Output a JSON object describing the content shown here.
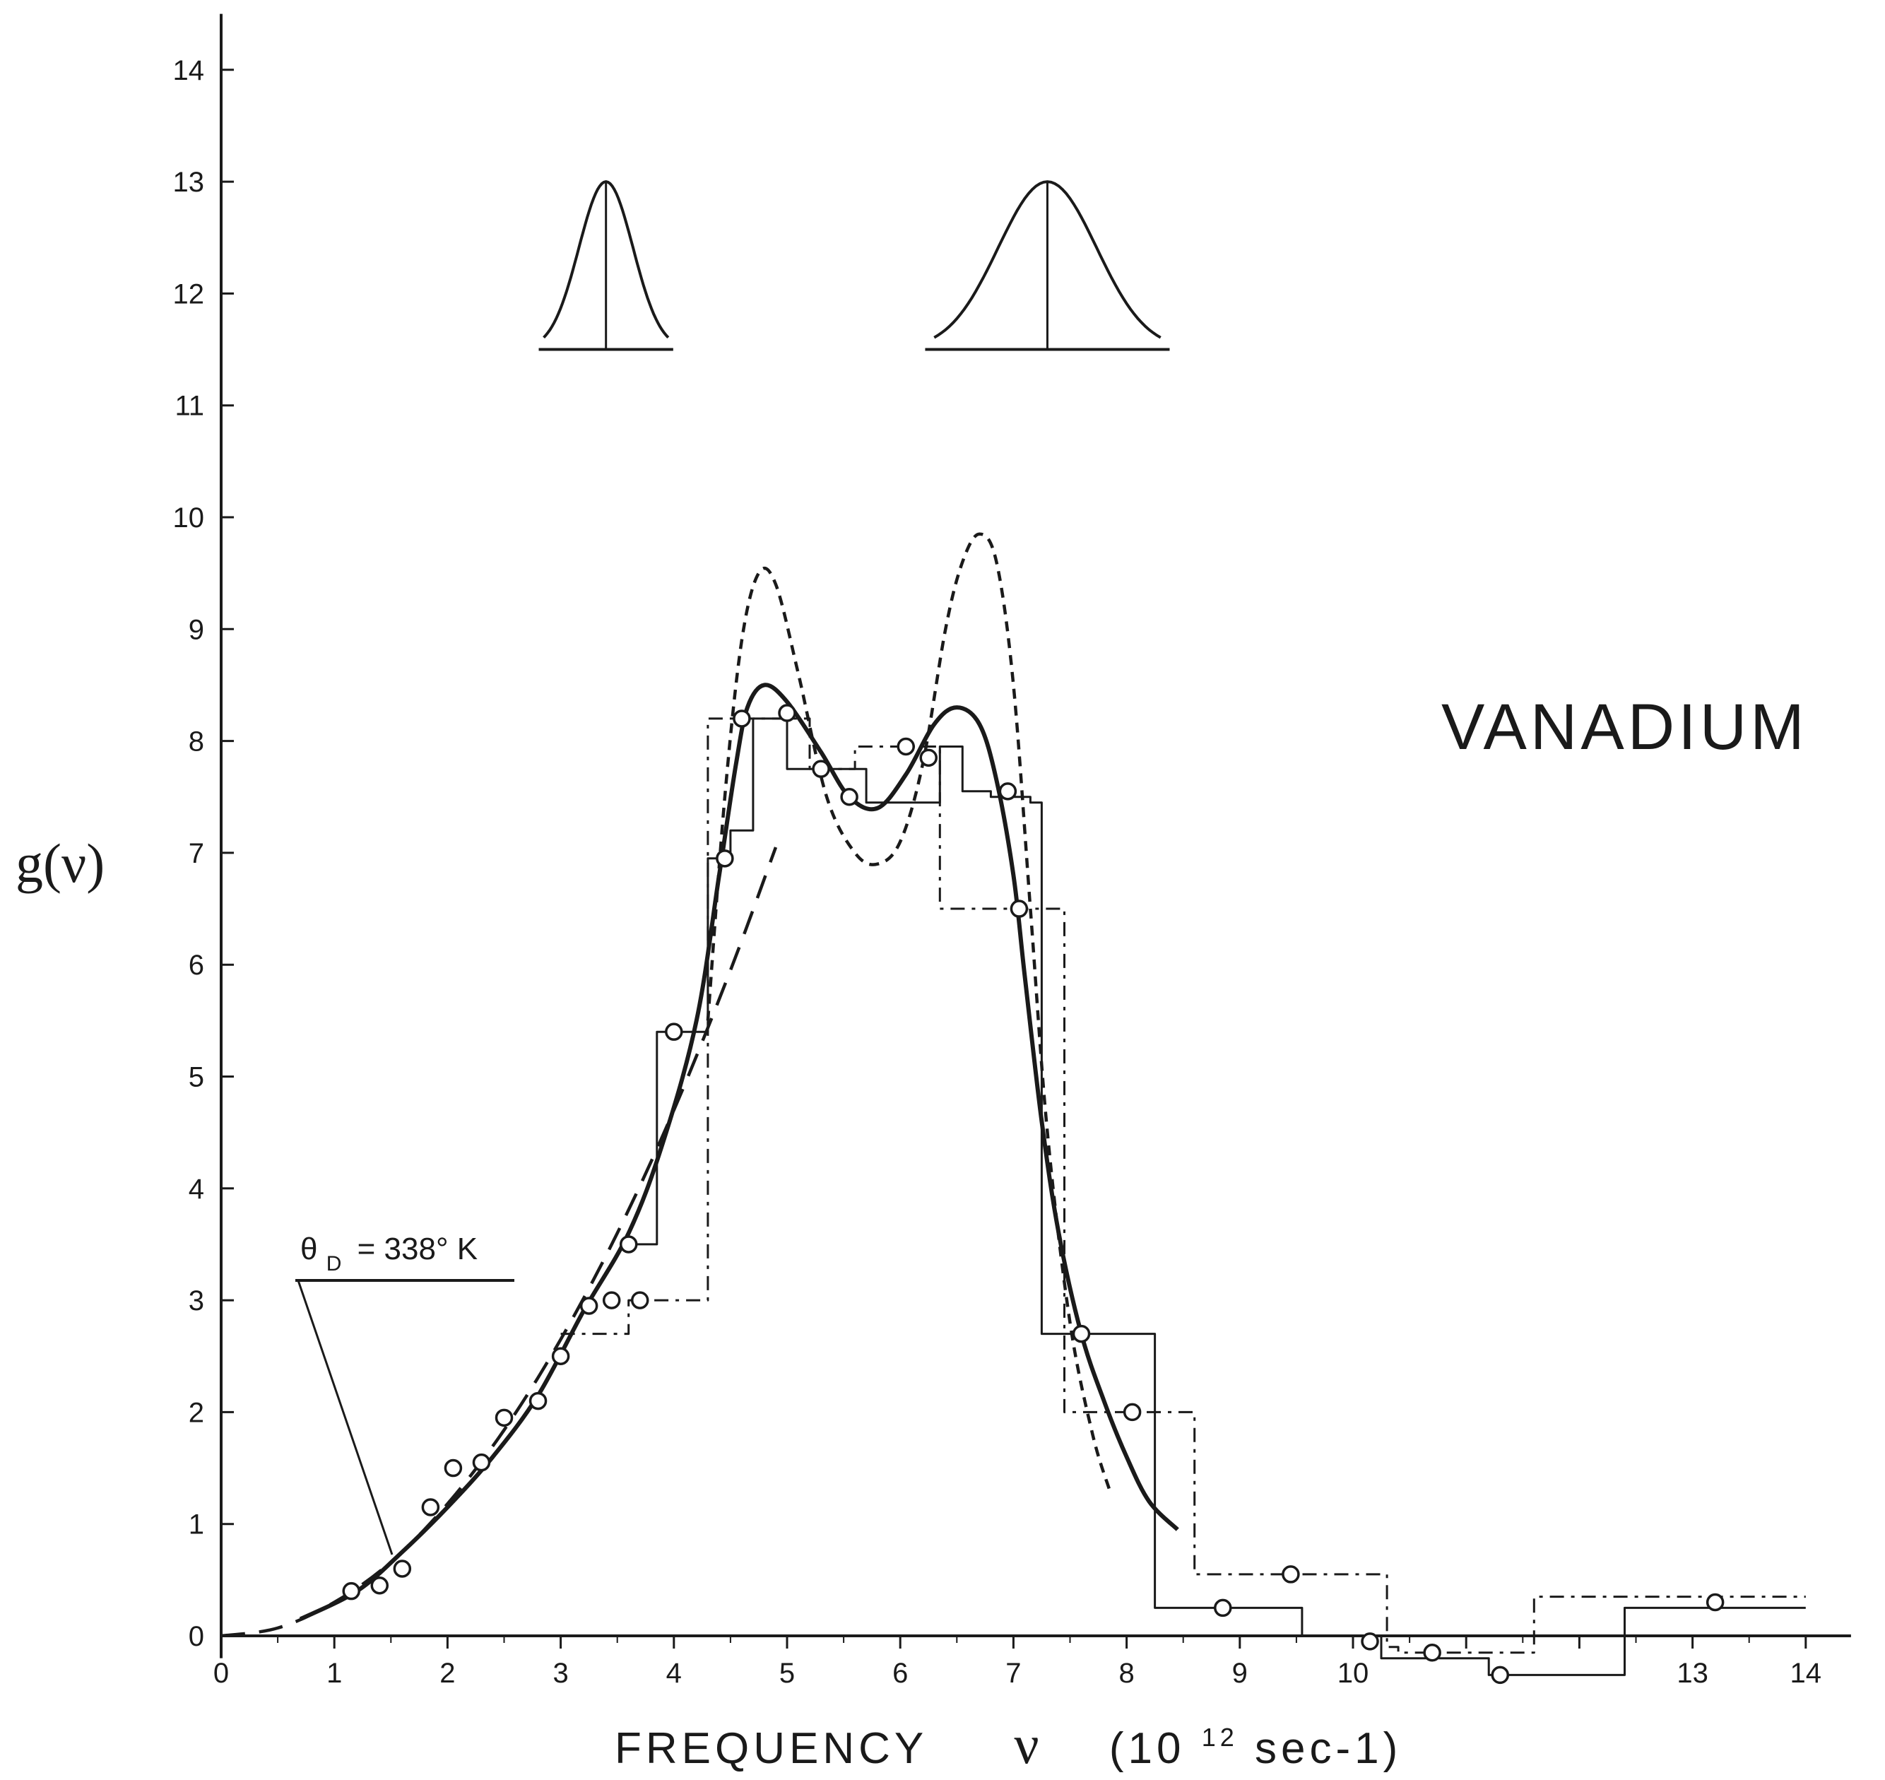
{
  "chart_data": {
    "type": "line",
    "title": "",
    "label": "VANADIUM",
    "ylabel": "g(ν)",
    "xlabel": {
      "prefix": "FREQUENCY",
      "symbol": "ν",
      "unit_open": "(10",
      "unit_exp": "12",
      "unit_close": "sec-1)"
    },
    "xlim": [
      0,
      14
    ],
    "ylim": [
      0,
      14
    ],
    "xticks": [
      "0",
      "1",
      "2",
      "3",
      "4",
      "5",
      "6",
      "7",
      "8",
      "9",
      "10",
      "",
      "",
      "13",
      "14"
    ],
    "yticks": [
      "0",
      "1",
      "2",
      "3",
      "4",
      "5",
      "6",
      "7",
      "8",
      "9",
      "10",
      "11",
      "12",
      "13",
      "14"
    ],
    "annotation": {
      "symbol": "θ",
      "subscript": "D",
      "text": "= 338° K",
      "value_K": 338
    },
    "resolution_peaks": [
      {
        "center": 3.4,
        "halfwidth": 0.55,
        "base": 11.5,
        "peak": 13.0
      },
      {
        "center": 7.3,
        "halfwidth": 1.0,
        "base": 11.5,
        "peak": 13.0
      }
    ],
    "series": [
      {
        "style": "solid-curve",
        "x": [
          0.7,
          1.2,
          1.6,
          2.0,
          2.4,
          2.8,
          3.2,
          3.6,
          3.9,
          4.2,
          4.4,
          4.55,
          4.65,
          4.8,
          5.0,
          5.3,
          5.55,
          5.8,
          6.05,
          6.3,
          6.5,
          6.7,
          6.85,
          7.0,
          7.1,
          7.25,
          7.4,
          7.6,
          7.8,
          8.0,
          8.2,
          8.45
        ],
        "y": [
          0.15,
          0.4,
          0.75,
          1.15,
          1.6,
          2.15,
          2.9,
          3.6,
          4.4,
          5.5,
          6.8,
          7.8,
          8.3,
          8.5,
          8.35,
          7.9,
          7.5,
          7.4,
          7.7,
          8.15,
          8.3,
          8.15,
          7.65,
          6.8,
          5.9,
          4.6,
          3.6,
          2.7,
          2.1,
          1.6,
          1.2,
          0.95
        ]
      },
      {
        "style": "dotted-curve",
        "x": [
          4.3,
          4.45,
          4.6,
          4.75,
          4.9,
          5.1,
          5.35,
          5.6,
          5.8,
          6.0,
          6.2,
          6.4,
          6.55,
          6.7,
          6.85,
          7.0,
          7.15,
          7.3,
          7.5,
          7.7,
          7.85
        ],
        "y": [
          5.5,
          7.5,
          8.9,
          9.5,
          9.4,
          8.6,
          7.5,
          7.0,
          6.9,
          7.1,
          7.8,
          9.0,
          9.6,
          9.85,
          9.6,
          8.5,
          6.5,
          4.5,
          2.8,
          1.8,
          1.3
        ]
      },
      {
        "style": "dashed-debye",
        "x": [
          0,
          0.5,
          1.0,
          1.5,
          2.0,
          2.5,
          3.0,
          3.5,
          4.0,
          4.5,
          4.9
        ],
        "y": [
          0,
          0.07,
          0.3,
          0.66,
          1.18,
          1.84,
          2.65,
          3.6,
          4.7,
          5.95,
          7.05
        ]
      },
      {
        "style": "solid-histogram",
        "x": [
          3.6,
          3.85,
          4.3,
          4.5,
          4.7,
          5.0,
          5.7,
          6.35,
          6.55,
          6.8,
          7.15,
          7.25,
          8.2,
          8.25,
          9.5,
          9.55,
          10.2,
          10.25,
          11.1,
          11.2,
          12.3,
          12.4,
          14.0
        ],
        "y": [
          3.5,
          5.4,
          6.95,
          7.2,
          8.2,
          7.75,
          7.45,
          7.95,
          7.55,
          7.5,
          7.45,
          2.7,
          2.7,
          0.25,
          0.25,
          0.0,
          0.0,
          -0.2,
          -0.2,
          -0.35,
          -0.35,
          0.25,
          0.25
        ]
      },
      {
        "style": "dash-dot-histogram",
        "x": [
          3.0,
          3.6,
          3.8,
          4.3,
          4.4,
          4.6,
          4.9,
          5.2,
          5.6,
          6.0,
          6.35,
          6.5,
          6.55,
          7.35,
          7.45,
          8.5,
          8.6,
          9.2,
          9.3,
          10.3,
          10.4,
          11.5,
          11.6,
          14.0
        ],
        "y": [
          2.7,
          3.0,
          3.0,
          8.2,
          8.2,
          8.2,
          8.2,
          7.75,
          7.95,
          7.95,
          6.5,
          6.5,
          6.5,
          6.5,
          2.0,
          2.0,
          0.55,
          0.55,
          0.55,
          -0.1,
          -0.15,
          -0.15,
          0.35,
          0.35
        ]
      },
      {
        "style": "circle-points",
        "x": [
          1.15,
          1.4,
          1.6,
          1.85,
          2.05,
          2.3,
          2.5,
          2.8,
          3.0,
          3.25,
          3.45,
          3.6,
          3.7,
          4.0,
          4.45,
          4.6,
          5.0,
          5.3,
          5.55,
          6.05,
          6.25,
          6.95,
          7.05,
          7.6,
          8.05,
          8.85,
          9.45,
          10.15,
          10.7,
          11.3,
          13.2
        ],
        "y": [
          0.4,
          0.45,
          0.6,
          1.15,
          1.5,
          1.55,
          1.95,
          2.1,
          2.5,
          2.95,
          3.0,
          3.5,
          3.0,
          5.4,
          6.95,
          8.2,
          8.25,
          7.75,
          7.5,
          7.95,
          7.85,
          7.55,
          6.5,
          2.7,
          2.0,
          0.25,
          0.55,
          -0.05,
          -0.15,
          -0.35,
          0.3
        ]
      }
    ]
  }
}
